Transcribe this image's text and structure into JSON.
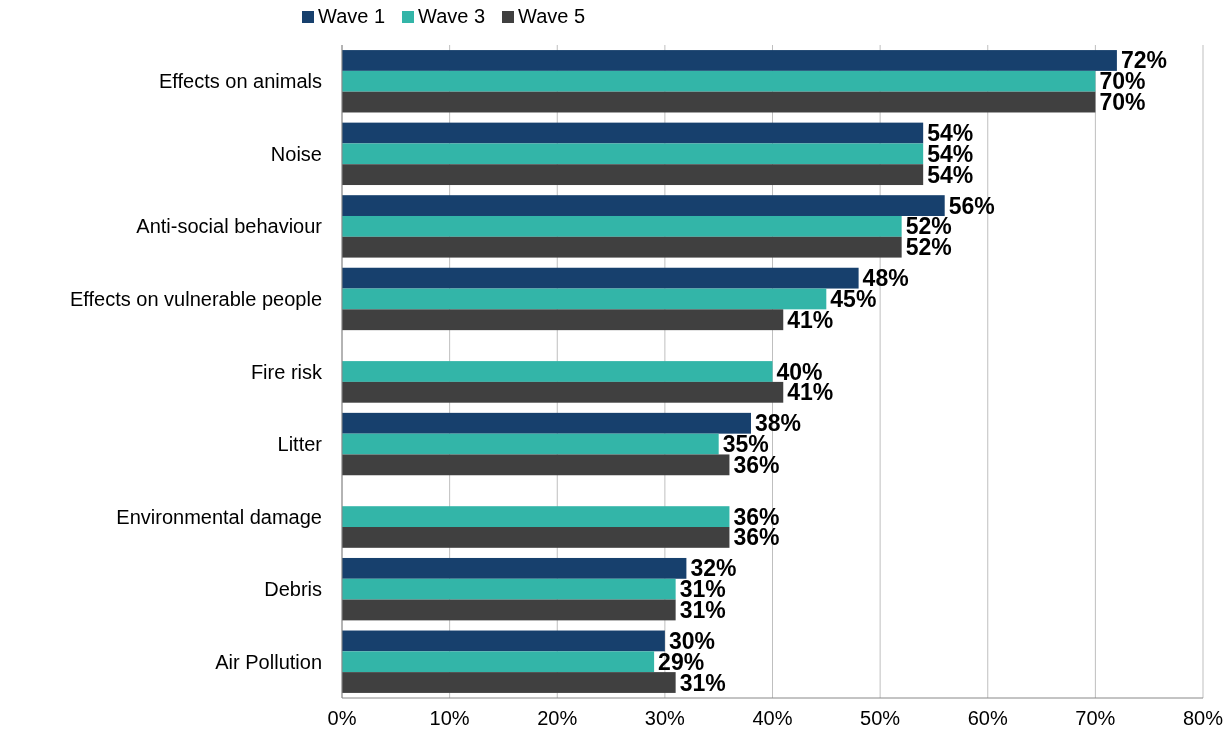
{
  "chart_data": {
    "type": "bar",
    "orientation": "horizontal",
    "categories": [
      "Effects on animals",
      "Noise",
      "Anti-social behaviour",
      "Effects on vulnerable people",
      "Fire risk",
      "Litter",
      "Environmental damage",
      "Debris",
      "Air Pollution"
    ],
    "series": [
      {
        "name": "Wave 1",
        "color": "#17406d",
        "values": [
          72,
          54,
          56,
          48,
          null,
          38,
          null,
          32,
          30
        ],
        "value_labels": [
          "72%",
          "54%",
          "56%",
          "48%",
          null,
          "38%",
          null,
          "32%",
          "30%"
        ]
      },
      {
        "name": "Wave 3",
        "color": "#33b5a8",
        "values": [
          70,
          54,
          52,
          45,
          40,
          35,
          36,
          31,
          29
        ],
        "value_labels": [
          "70%",
          "54%",
          "52%",
          "45%",
          "40%",
          "35%",
          "36%",
          "31%",
          "29%"
        ]
      },
      {
        "name": "Wave 5",
        "color": "#404040",
        "values": [
          70,
          54,
          52,
          41,
          41,
          36,
          36,
          31,
          31
        ],
        "value_labels": [
          "70%",
          "54%",
          "52%",
          "41%",
          "41%",
          "36%",
          "36%",
          "31%",
          "31%"
        ]
      }
    ],
    "xlim": [
      0,
      80
    ],
    "xticks": [
      {
        "value": 0,
        "label": "0%"
      },
      {
        "value": 10,
        "label": "10%"
      },
      {
        "value": 20,
        "label": "20%"
      },
      {
        "value": 30,
        "label": "30%"
      },
      {
        "value": 40,
        "label": "40%"
      },
      {
        "value": 50,
        "label": "50%"
      },
      {
        "value": 60,
        "label": "60%"
      },
      {
        "value": 70,
        "label": "70%"
      },
      {
        "value": 80,
        "label": "80%"
      }
    ],
    "grid": "x",
    "legend": "top"
  }
}
